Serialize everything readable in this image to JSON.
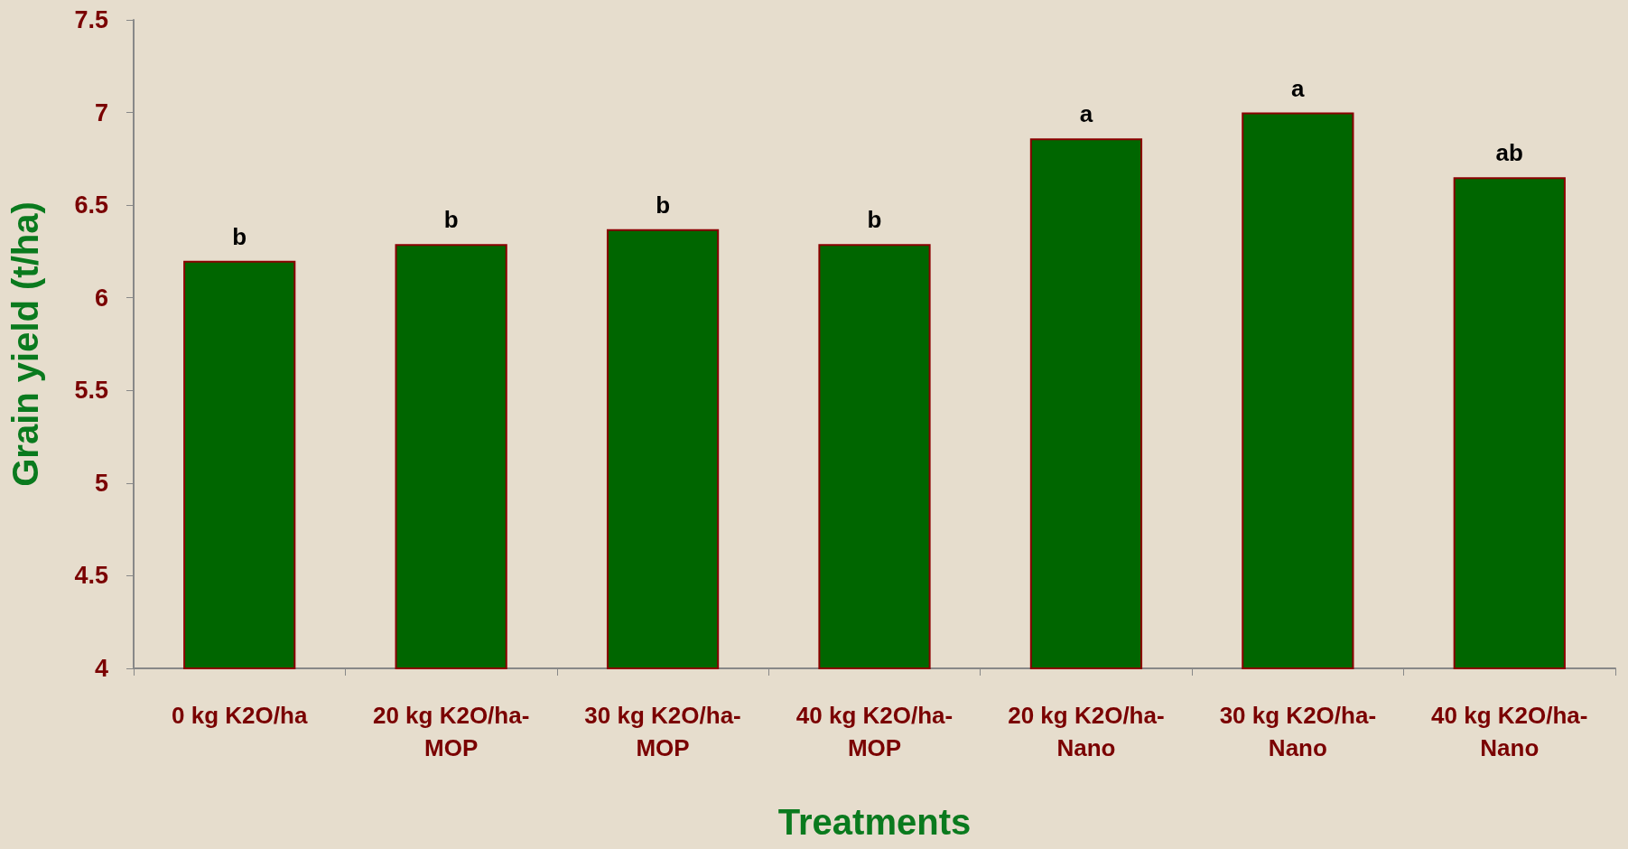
{
  "chart_data": {
    "type": "bar",
    "xlabel": "Treatments",
    "ylabel": "Grain yield (t/ha)",
    "categories": [
      "0 kg K2O/ha",
      "20 kg K2O/ha-\nMOP",
      "30 kg K2O/ha-\nMOP",
      "40 kg K2O/ha-\nMOP",
      "20 kg K2O/ha-\nNano",
      "30 kg K2O/ha-\nNano",
      "40 kg K2O/ha-\nNano"
    ],
    "values": [
      6.2,
      6.29,
      6.37,
      6.29,
      6.86,
      7.0,
      6.65
    ],
    "color": "#006600",
    "ylim": [
      4,
      7.5
    ],
    "yticks": [
      4,
      4.5,
      5,
      5.5,
      6,
      6.5,
      7,
      7.5
    ],
    "grid": false,
    "annotations": [
      {
        "text": "b",
        "x": "0 kg K2O/ha",
        "y": 6.2
      },
      {
        "text": "b",
        "x": "20 kg K2O/ha-\nMOP",
        "y": 6.29
      },
      {
        "text": "b",
        "x": "30 kg K2O/ha-\nMOP",
        "y": 6.37
      },
      {
        "text": "b",
        "x": "40 kg K2O/ha-\nMOP",
        "y": 6.29
      },
      {
        "text": "a",
        "x": "20 kg K2O/ha-\nNano",
        "y": 6.86
      },
      {
        "text": "a",
        "x": "30 kg K2O/ha-\nNano",
        "y": 7.0
      },
      {
        "text": "ab",
        "x": "40 kg K2O/ha-\nNano",
        "y": 6.65
      }
    ]
  }
}
